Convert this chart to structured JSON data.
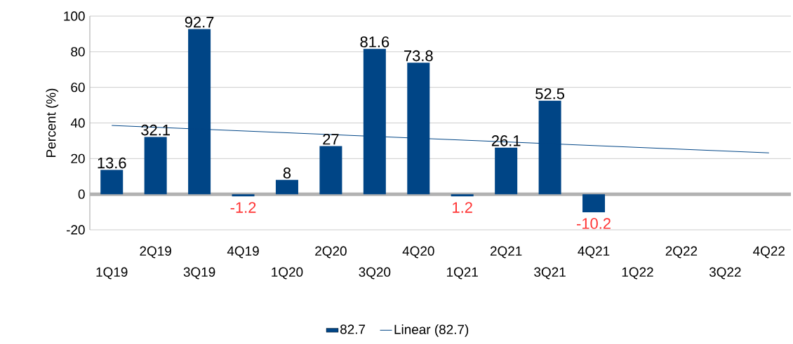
{
  "chart_data": {
    "type": "bar",
    "ylabel": "Percent (%)",
    "categories": [
      "1Q19",
      "2Q19",
      "3Q19",
      "4Q19",
      "1Q20",
      "2Q20",
      "3Q20",
      "4Q20",
      "1Q21",
      "2Q21",
      "3Q21",
      "4Q21",
      "1Q22",
      "2Q22",
      "3Q22",
      "4Q22"
    ],
    "series": [
      {
        "name": "82.7",
        "color": "#004586",
        "values": [
          13.6,
          32.1,
          92.7,
          -1.2,
          8,
          27,
          81.6,
          73.8,
          -1.2,
          26.1,
          52.5,
          -10.2,
          null,
          null,
          null,
          null
        ],
        "value_labels": [
          "13.6",
          "32.1",
          "92.7",
          "-1.2",
          "8",
          "27",
          "81.6",
          "73.8",
          null,
          "26.1",
          "52.5",
          "-10.2",
          null,
          null,
          null,
          null
        ]
      },
      {
        "name": "Linear (82.7)",
        "type": "line",
        "color": "#004586",
        "x": [
          "1Q19",
          "4Q22"
        ],
        "values": [
          38.6,
          23.2
        ]
      }
    ],
    "annotations": [
      {
        "text": "1.2",
        "x": "1Q21",
        "y": -1.2
      }
    ],
    "ylim": [
      -20,
      100
    ],
    "yticks": [
      -20,
      0,
      20,
      40,
      60,
      80,
      100
    ],
    "grid": true,
    "legend": "bottom"
  }
}
